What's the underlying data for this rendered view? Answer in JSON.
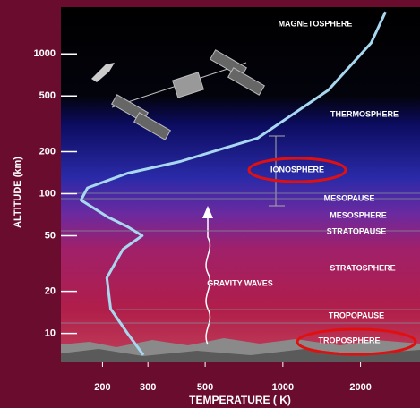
{
  "chart_data": {
    "type": "line",
    "x_label": "TEMPERATURE ( K)",
    "y_label": "ALTITUDE (km)",
    "x": [
      288,
      250,
      215,
      208,
      240,
      285,
      250,
      210,
      165,
      175,
      250,
      400,
      800,
      1500,
      2200,
      2500
    ],
    "series": [
      {
        "color": "#a8d8f0",
        "values": [
          7,
          10,
          15,
          25,
          40,
          50,
          58,
          68,
          90,
          110,
          140,
          170,
          250,
          550,
          1200,
          2000
        ]
      }
    ],
    "xlim": [
      138,
      3400
    ],
    "ylim": [
      6.2,
      2100
    ],
    "xticks": [
      200,
      300,
      500,
      1000,
      2000
    ],
    "yticks": [
      10,
      20,
      50,
      100,
      200,
      500,
      1000
    ],
    "log_x": true,
    "log_y": true,
    "annotations": [
      "MAGNETOSPHERE",
      "THERMOSPHERE",
      "IONOSPHERE",
      "MESOPAUSE",
      "MESOSPHERE",
      "STRATOPAUSE",
      "STRATOSPHERE",
      "TROPOPAUSE",
      "TROPOSPHERE",
      "GRAVITY WAVES"
    ]
  }
}
